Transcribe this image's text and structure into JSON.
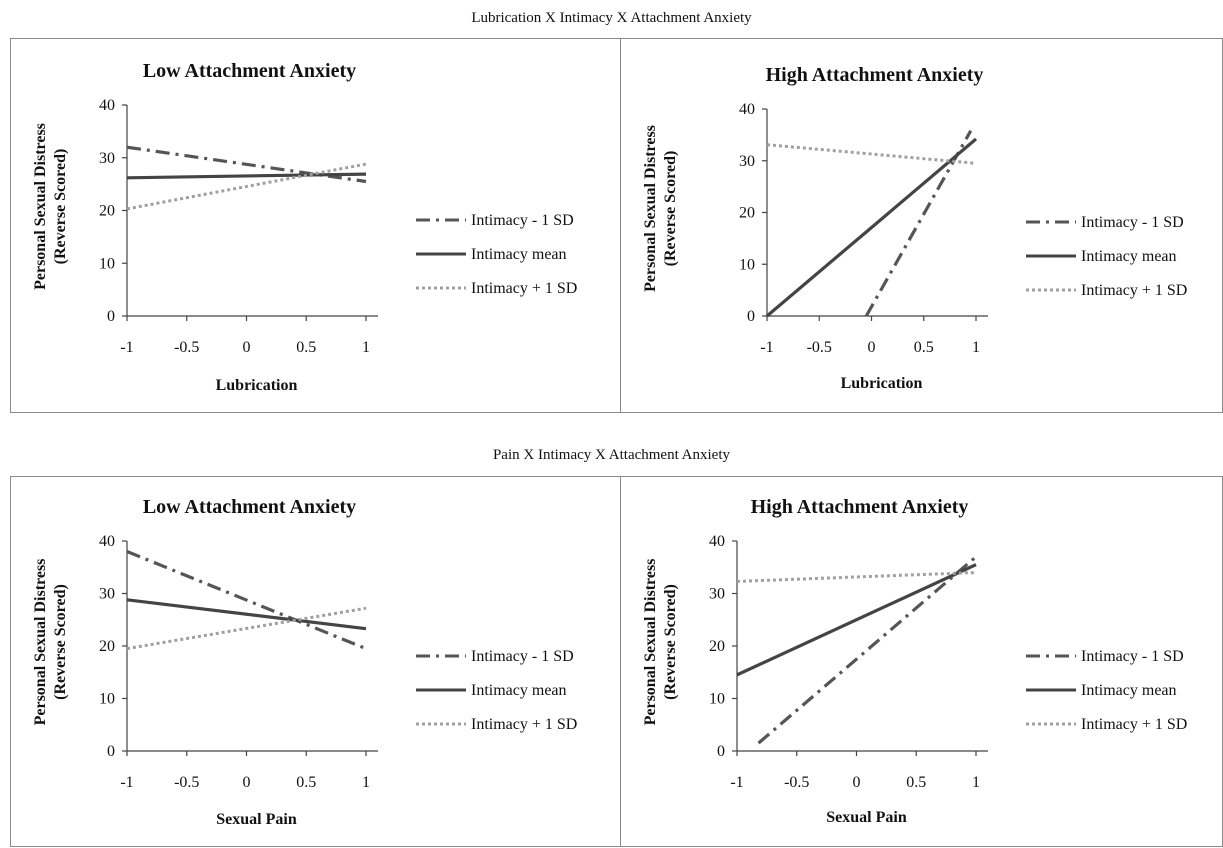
{
  "sections": [
    {
      "title": "Lubrication X Intimacy X Attachment Anxiety"
    },
    {
      "title": "Pain X Intimacy X Attachment Anxiety"
    }
  ],
  "chart_data": [
    {
      "type": "line",
      "title": "Low Attachment Anxiety",
      "xlabel": "Lubrication",
      "ylabel": [
        "Personal Sexual Distress",
        "(Reverse Scored)"
      ],
      "x_ticks": [
        "-1",
        "-0.5",
        "0",
        "0.5",
        "1"
      ],
      "y_ticks": [
        "0",
        "10",
        "20",
        "30",
        "40"
      ],
      "ylim": [
        0,
        40
      ],
      "xlim": [
        -1,
        1
      ],
      "legend_position": "right",
      "series": [
        {
          "name": "Intimacy - 1 SD",
          "style": "dashdot",
          "color": "#555555",
          "x": [
            -1,
            1
          ],
          "y": [
            32,
            25.5
          ]
        },
        {
          "name": "Intimacy mean",
          "style": "solid",
          "color": "#444444",
          "x": [
            -1,
            1
          ],
          "y": [
            26.2,
            26.9
          ]
        },
        {
          "name": "Intimacy + 1 SD",
          "style": "dotted",
          "color": "#a0a0a0",
          "x": [
            -1,
            1
          ],
          "y": [
            20.3,
            28.8
          ]
        }
      ]
    },
    {
      "type": "line",
      "title": "High Attachment Anxiety",
      "xlabel": "Lubrication",
      "ylabel": [
        "Personal Sexual Distress",
        "(Reverse Scored)"
      ],
      "x_ticks": [
        "-1",
        "-0.5",
        "0",
        "0.5",
        "1"
      ],
      "y_ticks": [
        "0",
        "10",
        "20",
        "30",
        "40"
      ],
      "ylim": [
        0,
        40
      ],
      "xlim": [
        -1,
        1
      ],
      "legend_position": "right",
      "series": [
        {
          "name": "Intimacy - 1 SD",
          "style": "dashdot",
          "color": "#555555",
          "x": [
            -0.05,
            0.95
          ],
          "y": [
            0,
            35.8
          ]
        },
        {
          "name": "Intimacy mean",
          "style": "solid",
          "color": "#444444",
          "x": [
            -1,
            1
          ],
          "y": [
            0,
            34.2
          ]
        },
        {
          "name": "Intimacy + 1 SD",
          "style": "dotted",
          "color": "#a0a0a0",
          "x": [
            -1,
            1
          ],
          "y": [
            33.1,
            29.5
          ]
        }
      ]
    },
    {
      "type": "line",
      "title": "Low Attachment Anxiety",
      "xlabel": "Sexual Pain",
      "ylabel": [
        "Personal Sexual Distress",
        "(Reverse Scored)"
      ],
      "x_ticks": [
        "-1",
        "-0.5",
        "0",
        "0.5",
        "1"
      ],
      "y_ticks": [
        "0",
        "10",
        "20",
        "30",
        "40"
      ],
      "ylim": [
        0,
        40
      ],
      "xlim": [
        -1,
        1
      ],
      "legend_position": "right",
      "series": [
        {
          "name": "Intimacy - 1 SD",
          "style": "dashdot",
          "color": "#555555",
          "x": [
            -1,
            1
          ],
          "y": [
            38,
            19.5
          ]
        },
        {
          "name": "Intimacy mean",
          "style": "solid",
          "color": "#444444",
          "x": [
            -1,
            1
          ],
          "y": [
            28.8,
            23.3
          ]
        },
        {
          "name": "Intimacy + 1 SD",
          "style": "dotted",
          "color": "#a0a0a0",
          "x": [
            -1,
            1
          ],
          "y": [
            19.5,
            27.2
          ]
        }
      ]
    },
    {
      "type": "line",
      "title": "High Attachment Anxiety",
      "xlabel": "Sexual Pain",
      "ylabel": [
        "Personal Sexual Distress",
        "(Reverse Scored)"
      ],
      "x_ticks": [
        "-1",
        "-0.5",
        "0",
        "0.5",
        "1"
      ],
      "y_ticks": [
        "0",
        "10",
        "20",
        "30",
        "40"
      ],
      "ylim": [
        0,
        40
      ],
      "xlim": [
        -1,
        1
      ],
      "legend_position": "right",
      "series": [
        {
          "name": "Intimacy - 1 SD",
          "style": "dashdot",
          "color": "#555555",
          "x": [
            -0.82,
            1
          ],
          "y": [
            1.5,
            37
          ]
        },
        {
          "name": "Intimacy mean",
          "style": "solid",
          "color": "#444444",
          "x": [
            -1,
            1
          ],
          "y": [
            14.5,
            35.5
          ]
        },
        {
          "name": "Intimacy + 1 SD",
          "style": "dotted",
          "color": "#a0a0a0",
          "x": [
            -1,
            1
          ],
          "y": [
            32.3,
            34
          ]
        }
      ]
    }
  ]
}
